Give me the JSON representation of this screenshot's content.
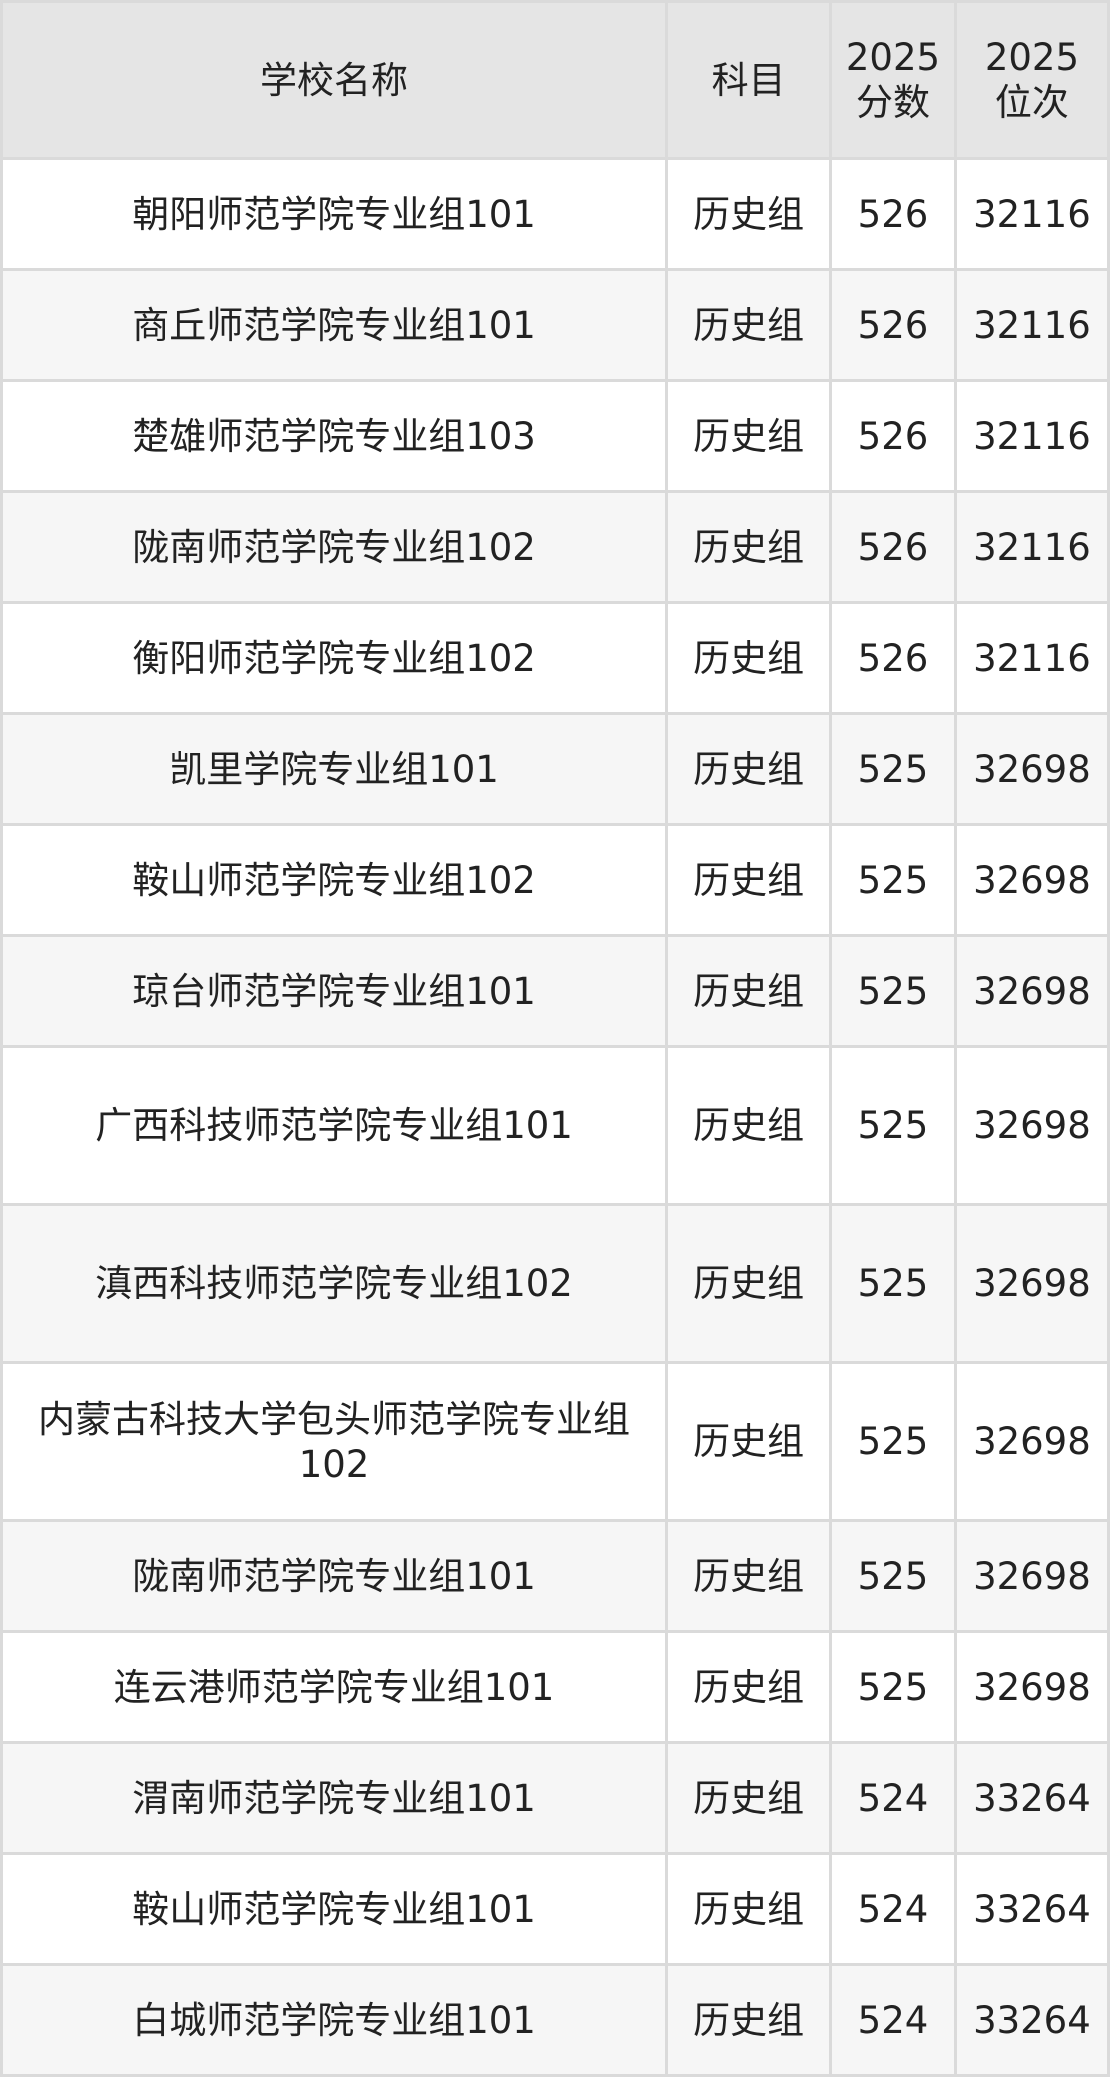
{
  "table": {
    "headers": [
      "学校名称",
      "科目",
      "2025\n分数",
      "2025\n位次"
    ],
    "header_lines": [
      [
        "学校名称"
      ],
      [
        "科目"
      ],
      [
        "2025",
        "分数"
      ],
      [
        "2025",
        "位次"
      ]
    ],
    "rows": [
      {
        "name": "朝阳师范学院专业组101",
        "subject": "历史组",
        "score": "526",
        "rank": "32116"
      },
      {
        "name": "商丘师范学院专业组101",
        "subject": "历史组",
        "score": "526",
        "rank": "32116"
      },
      {
        "name": "楚雄师范学院专业组103",
        "subject": "历史组",
        "score": "526",
        "rank": "32116"
      },
      {
        "name": "陇南师范学院专业组102",
        "subject": "历史组",
        "score": "526",
        "rank": "32116"
      },
      {
        "name": "衡阳师范学院专业组102",
        "subject": "历史组",
        "score": "526",
        "rank": "32116"
      },
      {
        "name": "凯里学院专业组101",
        "subject": "历史组",
        "score": "525",
        "rank": "32698"
      },
      {
        "name": "鞍山师范学院专业组102",
        "subject": "历史组",
        "score": "525",
        "rank": "32698"
      },
      {
        "name": "琼台师范学院专业组101",
        "subject": "历史组",
        "score": "525",
        "rank": "32698"
      },
      {
        "name": "广西科技师范学院专业组101",
        "subject": "历史组",
        "score": "525",
        "rank": "32698"
      },
      {
        "name": "滇西科技师范学院专业组102",
        "subject": "历史组",
        "score": "525",
        "rank": "32698"
      },
      {
        "name": "内蒙古科技大学包头师范学院专业组102",
        "subject": "历史组",
        "score": "525",
        "rank": "32698"
      },
      {
        "name": "陇南师范学院专业组101",
        "subject": "历史组",
        "score": "525",
        "rank": "32698"
      },
      {
        "name": "连云港师范学院专业组101",
        "subject": "历史组",
        "score": "525",
        "rank": "32698"
      },
      {
        "name": "渭南师范学院专业组101",
        "subject": "历史组",
        "score": "524",
        "rank": "33264"
      },
      {
        "name": "鞍山师范学院专业组101",
        "subject": "历史组",
        "score": "524",
        "rank": "33264"
      },
      {
        "name": "白城师范学院专业组101",
        "subject": "历史组",
        "score": "524",
        "rank": "33264"
      }
    ]
  }
}
